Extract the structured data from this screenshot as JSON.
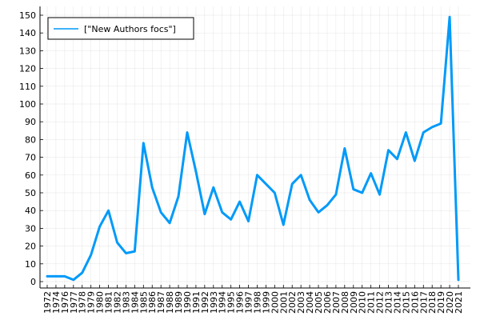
{
  "chart_data": {
    "type": "line",
    "title": "",
    "xlabel": "",
    "ylabel": "",
    "ylim": [
      0,
      150
    ],
    "yticks": [
      0,
      10,
      20,
      30,
      40,
      50,
      60,
      70,
      80,
      90,
      100,
      110,
      120,
      130,
      140,
      150
    ],
    "grid": true,
    "legend_position": "top-left",
    "line_color": "#009af9",
    "x": [
      "1972",
      "1974",
      "1976",
      "1977",
      "1978",
      "1979",
      "1980",
      "1981",
      "1982",
      "1983",
      "1984",
      "1985",
      "1986",
      "1987",
      "1988",
      "1989",
      "1990",
      "1991",
      "1992",
      "1993",
      "1994",
      "1995",
      "1996",
      "1997",
      "1998",
      "1999",
      "2000",
      "2001",
      "2002",
      "2003",
      "2004",
      "2005",
      "2006",
      "2007",
      "2008",
      "2009",
      "2010",
      "2011",
      "2012",
      "2013",
      "2014",
      "2015",
      "2016",
      "2017",
      "2018",
      "2019",
      "2020",
      "2021"
    ],
    "series": [
      {
        "name": "[\"New Authors focs\"]",
        "values": [
          3,
          3,
          3,
          1,
          5,
          15,
          31,
          40,
          22,
          16,
          17,
          78,
          53,
          39,
          33,
          48,
          84,
          62,
          38,
          53,
          39,
          35,
          45,
          34,
          60,
          55,
          50,
          32,
          55,
          60,
          46,
          39,
          43,
          49,
          75,
          52,
          50,
          61,
          49,
          74,
          69,
          84,
          68,
          84,
          87,
          89,
          149,
          1
        ]
      }
    ]
  }
}
